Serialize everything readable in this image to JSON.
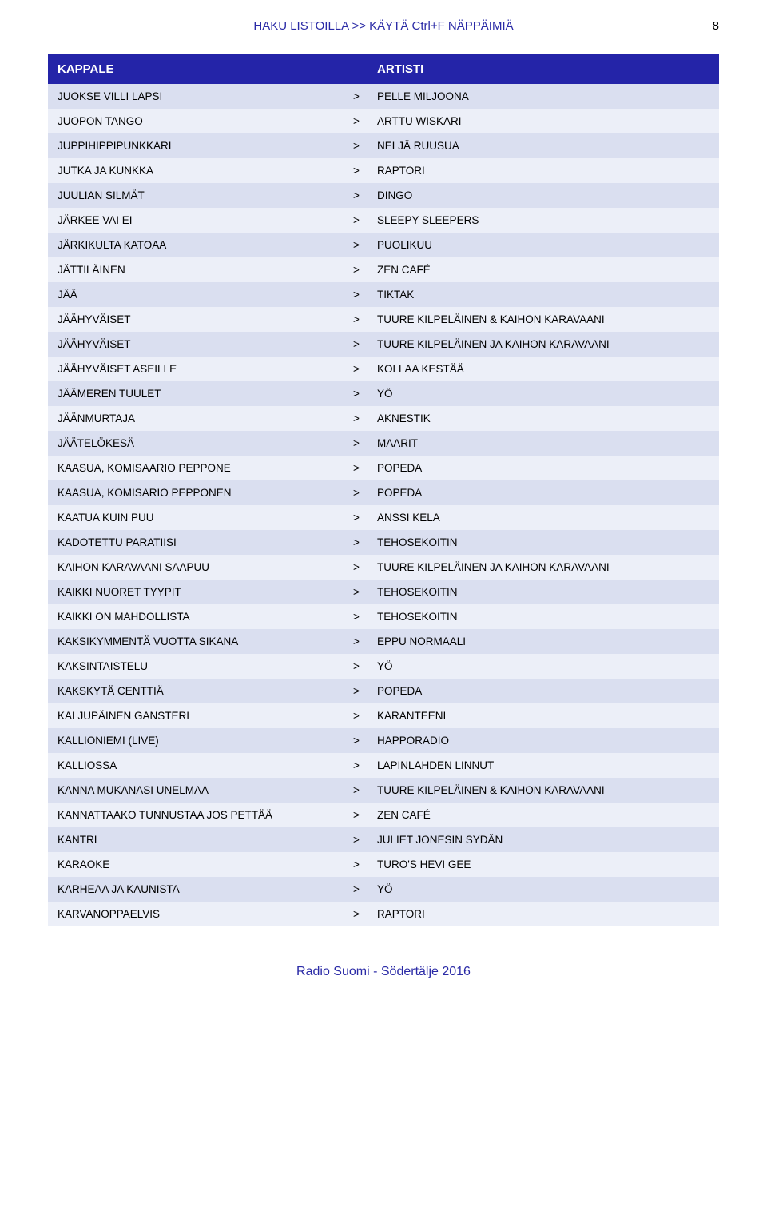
{
  "header": {
    "title": "HAKU LISTOILLA >> KÄYTÄ Ctrl+F NÄPPÄIMIÄ",
    "page_number": "8",
    "title_color": "#2a2aa6",
    "title_fontsize": 15
  },
  "table": {
    "header_bg": "#2424a8",
    "header_text_color": "#ffffff",
    "row_bg_even": "#dadff0",
    "row_bg_odd": "#eceff8",
    "row_text_color": "#000000",
    "separator": ">",
    "columns": [
      "KAPPALE",
      "ARTISTI"
    ],
    "rows": [
      [
        "JUOKSE VILLI LAPSI",
        "PELLE MILJOONA"
      ],
      [
        "JUOPON TANGO",
        "ARTTU WISKARI"
      ],
      [
        "JUPPIHIPPIPUNKKARI",
        "NELJÄ RUUSUA"
      ],
      [
        "JUTKA JA KUNKKA",
        "RAPTORI"
      ],
      [
        "JUULIAN SILMÄT",
        "DINGO"
      ],
      [
        "JÄRKEE VAI EI",
        "SLEEPY SLEEPERS"
      ],
      [
        "JÄRKIKULTA KATOAA",
        "PUOLIKUU"
      ],
      [
        "JÄTTILÄINEN",
        "ZEN CAFÉ"
      ],
      [
        "JÄÄ",
        "TIKTAK"
      ],
      [
        "JÄÄHYVÄISET",
        "TUURE KILPELÄINEN & KAIHON KARAVAANI"
      ],
      [
        "JÄÄHYVÄISET",
        "TUURE KILPELÄINEN JA KAIHON KARAVAANI"
      ],
      [
        "JÄÄHYVÄISET ASEILLE",
        "KOLLAA KESTÄÄ"
      ],
      [
        "JÄÄMEREN TUULET",
        "YÖ"
      ],
      [
        "JÄÄNMURTAJA",
        "AKNESTIK"
      ],
      [
        "JÄÄTELÖKESÄ",
        "MAARIT"
      ],
      [
        "KAASUA, KOMISAARIO PEPPONE",
        "POPEDA"
      ],
      [
        "KAASUA, KOMISARIO PEPPONEN",
        "POPEDA"
      ],
      [
        "KAATUA KUIN PUU",
        "ANSSI KELA"
      ],
      [
        "KADOTETTU PARATIISI",
        "TEHOSEKOITIN"
      ],
      [
        "KAIHON KARAVAANI SAAPUU",
        "TUURE KILPELÄINEN JA KAIHON KARAVAANI"
      ],
      [
        "KAIKKI NUORET TYYPIT",
        "TEHOSEKOITIN"
      ],
      [
        "KAIKKI ON MAHDOLLISTA",
        "TEHOSEKOITIN"
      ],
      [
        "KAKSIKYMMENTÄ VUOTTA SIKANA",
        "EPPU NORMAALI"
      ],
      [
        "KAKSINTAISTELU",
        "YÖ"
      ],
      [
        "KAKSKYTÄ CENTTIÄ",
        "POPEDA"
      ],
      [
        "KALJUPÄINEN GANSTERI",
        "KARANTEENI"
      ],
      [
        "KALLIONIEMI (LIVE)",
        "HAPPORADIO"
      ],
      [
        "KALLIOSSA",
        "LAPINLAHDEN LINNUT"
      ],
      [
        "KANNA MUKANASI UNELMAA",
        "TUURE KILPELÄINEN & KAIHON KARAVAANI"
      ],
      [
        "KANNATTAAKO TUNNUSTAA JOS PETTÄÄ",
        "ZEN CAFÉ"
      ],
      [
        "KANTRI",
        "JULIET JONESIN SYDÄN"
      ],
      [
        "KARAOKE",
        "TURO'S HEVI GEE"
      ],
      [
        "KARHEAA JA KAUNISTA",
        "YÖ"
      ],
      [
        "KARVANOPPAELVIS",
        "RAPTORI"
      ]
    ]
  },
  "footer": {
    "text": "Radio Suomi - Södertälje 2016",
    "color": "#2a2aa6",
    "fontsize": 16
  }
}
